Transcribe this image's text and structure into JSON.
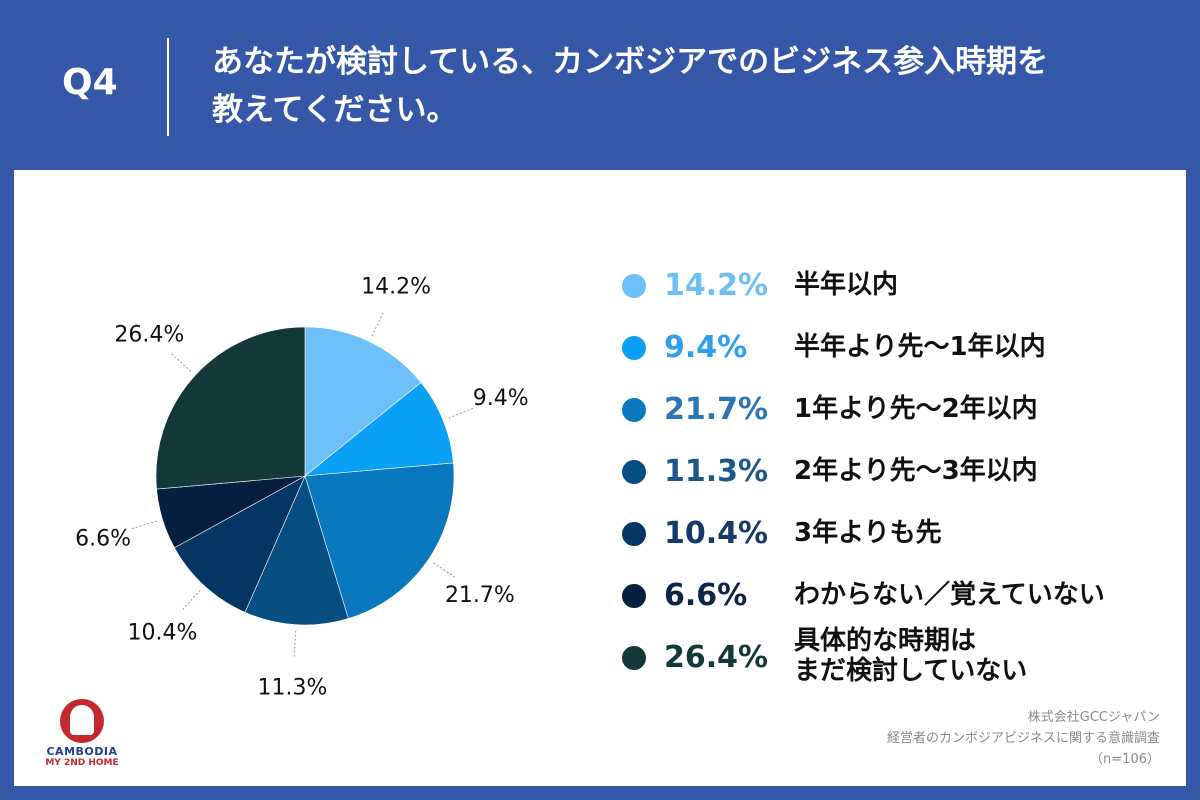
{
  "header": {
    "q_number": "Q4",
    "question": "あなたが検討している、カンボジアでのビジネス参入時期を\n教えてください。"
  },
  "chart_data": {
    "type": "pie",
    "start_angle_deg": 0,
    "direction": "clockwise",
    "slices": [
      {
        "label": "半年以内",
        "value": 14.2,
        "pct_text": "14.2%",
        "color": "#6cbff7",
        "text_color": "#6cbff7"
      },
      {
        "label": "半年より先〜1年以内",
        "value": 9.4,
        "pct_text": "9.4%",
        "color": "#0aa0f5",
        "text_color": "#2f9ff0"
      },
      {
        "label": "1年より先〜2年以内",
        "value": 21.7,
        "pct_text": "21.7%",
        "color": "#0a78be",
        "text_color": "#2b74b6"
      },
      {
        "label": "2年より先〜3年以内",
        "value": 11.3,
        "pct_text": "11.3%",
        "color": "#074f83",
        "text_color": "#1f5689"
      },
      {
        "label": "3年よりも先",
        "value": 10.4,
        "pct_text": "10.4%",
        "color": "#053563",
        "text_color": "#16386a"
      },
      {
        "label": "わからない／覚えていない",
        "value": 6.6,
        "pct_text": "6.6%",
        "color": "#061f3f",
        "text_color": "#0e2346"
      },
      {
        "label": "具体的な時期は\nまだ検討していない",
        "value": 26.4,
        "pct_text": "26.4%",
        "color": "#12383a",
        "text_color": "#12383a"
      }
    ]
  },
  "logo": {
    "line1": "CAMBODIA",
    "line2": "MY 2ND HOME"
  },
  "source": {
    "company": "株式会社GCCジャパン",
    "survey": "経営者のカンボジアビジネスに関する意識調査",
    "sample": "（n=106）"
  }
}
